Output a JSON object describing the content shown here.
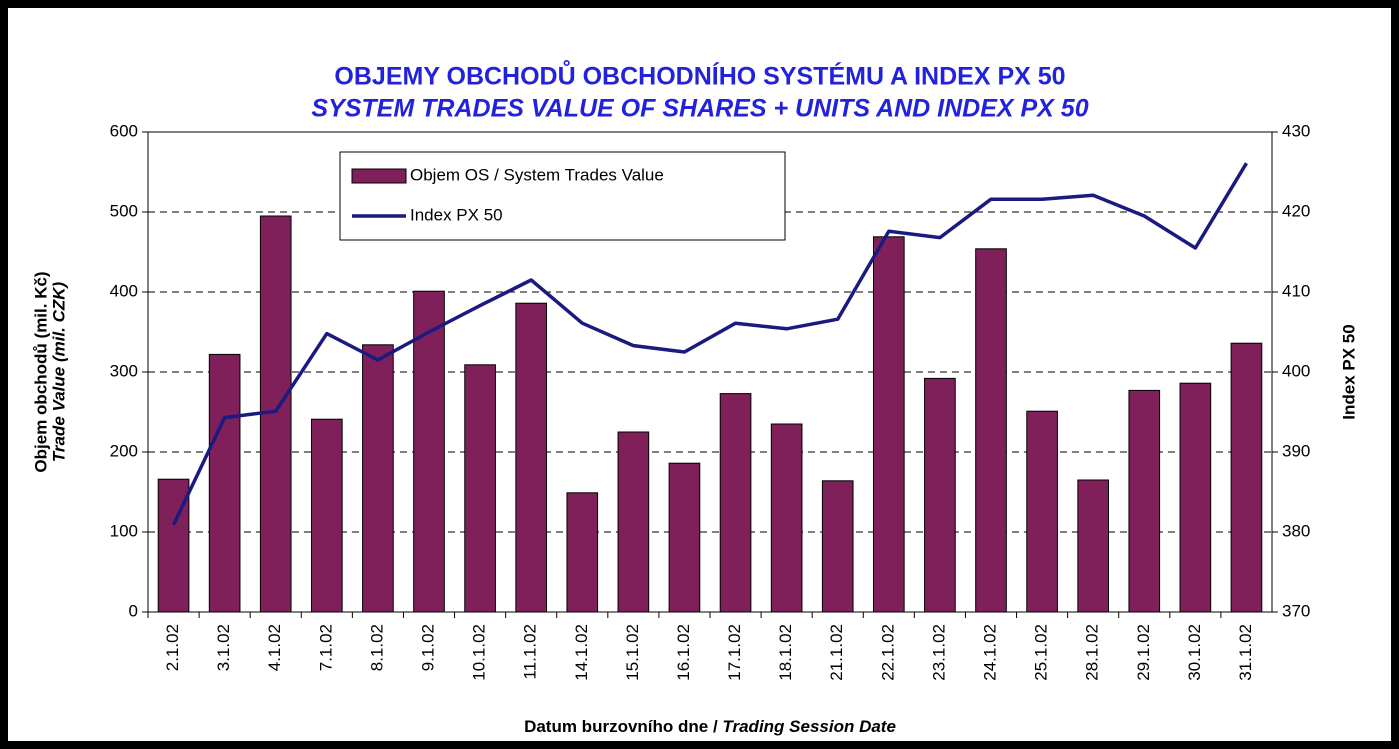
{
  "chart_data": {
    "type": "bar_line",
    "title": "OBJEMY OBCHODŮ OBCHODNÍHO SYSTÉMU A INDEX PX 50",
    "subtitle": "SYSTEM  TRADES VALUE OF SHARES + UNITS AND INDEX PX 50",
    "y_label": "Objem obchodů (mil. Kč)",
    "y_label_en": "Trade Value (mil. CZK)",
    "y2_label": "Index PX 50",
    "x_label": "Datum burzovního dne / ",
    "x_label_en": "Trading Session Date",
    "categories": [
      "2.1.02",
      "3.1.02",
      "4.1.02",
      "7.1.02",
      "8.1.02",
      "9.1.02",
      "10.1.02",
      "11.1.02",
      "14.1.02",
      "15.1.02",
      "16.1.02",
      "17.1.02",
      "18.1.02",
      "21.1.02",
      "22.1.02",
      "23.1.02",
      "24.1.02",
      "25.1.02",
      "28.1.02",
      "29.1.02",
      "30.1.02",
      "31.1.02"
    ],
    "series": [
      {
        "name": "Objem OS / System Trades Value",
        "type": "bar",
        "color": "#80205a",
        "values": [
          166,
          322,
          495,
          241,
          334,
          401,
          309,
          386,
          149,
          225,
          186,
          273,
          235,
          164,
          469,
          292,
          454,
          251,
          165,
          277,
          286,
          336
        ]
      },
      {
        "name": "Index PX 50",
        "type": "line",
        "axis": "y2",
        "color": "#1a1a80",
        "values": [
          380.9,
          394.3,
          395.1,
          404.8,
          401.5,
          405,
          408.3,
          411.5,
          406.1,
          403.3,
          402.5,
          406.1,
          405.4,
          406.6,
          417.6,
          416.8,
          421.6,
          421.6,
          422.1,
          419.5,
          415.5,
          426.1
        ]
      }
    ],
    "ylim": [
      0,
      600
    ],
    "yticks": [
      0,
      100,
      200,
      300,
      400,
      500,
      600
    ],
    "y2lim": [
      370,
      430
    ],
    "y2ticks": [
      370,
      380,
      390,
      400,
      410,
      420,
      430
    ],
    "grid": true,
    "legend": "top-left"
  }
}
